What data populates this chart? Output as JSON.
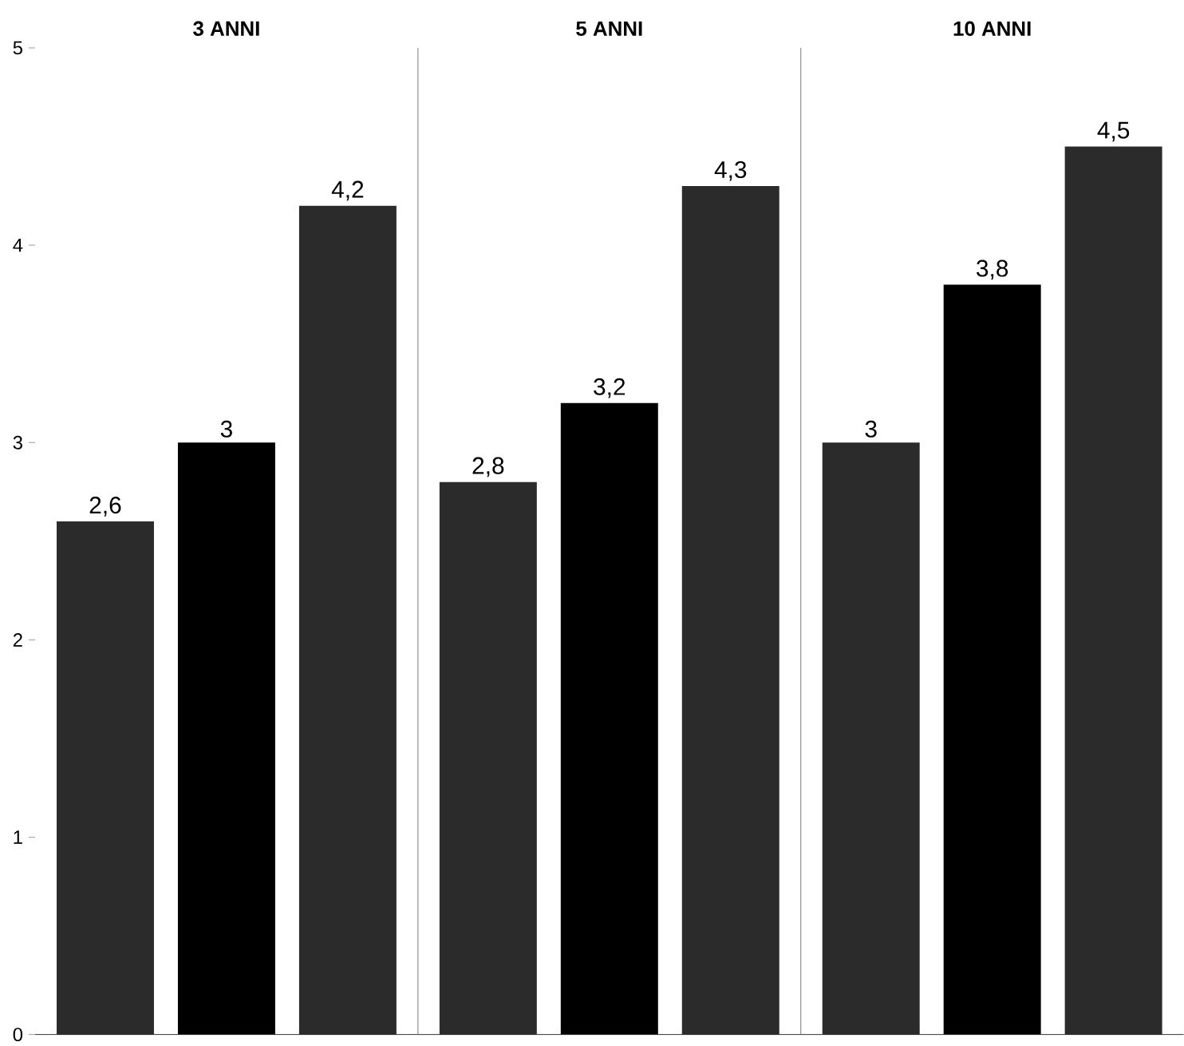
{
  "chart_data": {
    "type": "bar",
    "categories": [
      "3 ANNI",
      "5 ANNI",
      "10 ANNI"
    ],
    "series": [
      {
        "color": "#2b2b2b",
        "values": [
          2.6,
          2.8,
          3
        ],
        "value_labels": [
          "2,6",
          "2,8",
          "3"
        ]
      },
      {
        "color": "#000000",
        "values": [
          3,
          3.2,
          3.8
        ],
        "value_labels": [
          "3",
          "3,2",
          "3,8"
        ]
      },
      {
        "color": "#2b2b2b",
        "values": [
          4.2,
          4.3,
          4.5
        ],
        "value_labels": [
          "4,2",
          "4,3",
          "4,5"
        ]
      }
    ],
    "ylim": [
      0,
      5
    ],
    "yticks": [
      0,
      1,
      2,
      3,
      4,
      5
    ]
  }
}
